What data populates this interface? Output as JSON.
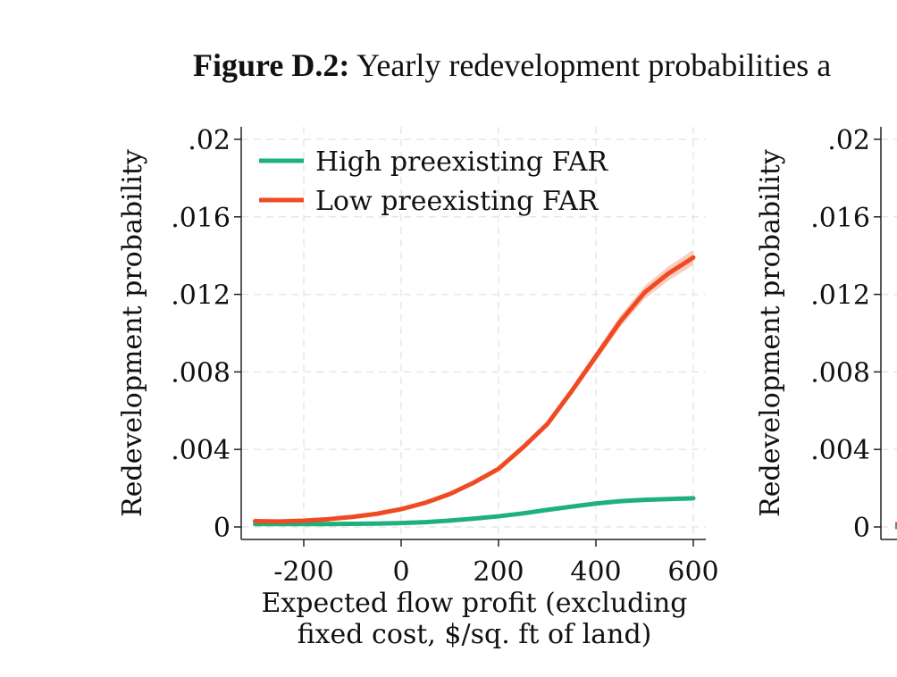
{
  "figure": {
    "caption_label": "Figure D.2:",
    "caption_text": "Yearly redevelopment probabilities a"
  },
  "chart_data": [
    {
      "type": "line",
      "xlabel": [
        "Expected flow profit (excluding",
        "fixed cost, $/sq. ft of land)"
      ],
      "ylabel": "Redevelopment probability",
      "xlim": [
        -300,
        600
      ],
      "ylim": [
        0,
        0.02
      ],
      "xticks": [
        -200,
        0,
        200,
        400,
        600
      ],
      "xtick_labels": [
        "-200",
        "0",
        "200",
        "400",
        "600"
      ],
      "yticks": [
        0,
        0.004,
        0.008,
        0.012,
        0.016,
        0.02
      ],
      "ytick_labels": [
        "0",
        ".004",
        ".008",
        ".012",
        ".016",
        ".02"
      ],
      "grid": true,
      "legend_position": "top-left",
      "x": [
        -300,
        -250,
        -200,
        -150,
        -100,
        -50,
        0,
        50,
        100,
        150,
        200,
        250,
        300,
        350,
        400,
        450,
        500,
        550,
        600
      ],
      "series": [
        {
          "name": "High preexisting FAR",
          "color": "#1db17d",
          "values": [
            0.00015,
            0.00015,
            0.00015,
            0.00015,
            0.00016,
            0.00017,
            0.0002,
            0.00025,
            0.00033,
            0.00043,
            0.00055,
            0.0007,
            0.00088,
            0.00105,
            0.00121,
            0.00133,
            0.0014,
            0.00144,
            0.00148
          ]
        },
        {
          "name": "Low preexisting FAR",
          "color": "#f04a22",
          "values": [
            0.0003,
            0.00028,
            0.00032,
            0.0004,
            0.00052,
            0.00068,
            0.00092,
            0.00125,
            0.0017,
            0.0023,
            0.003,
            0.0041,
            0.0053,
            0.007,
            0.0088,
            0.0106,
            0.0121,
            0.0131,
            0.0139
          ]
        }
      ]
    },
    {
      "type": "line",
      "xlabel": "",
      "ylabel": "Redevelopment probability",
      "ylim": [
        0,
        0.02
      ],
      "yticks": [
        0,
        0.004,
        0.008,
        0.012,
        0.016,
        0.02
      ],
      "ytick_labels": [
        "0",
        ".004",
        ".008",
        ".012",
        ".016",
        ".02"
      ],
      "grid": true,
      "truncated": "right"
    }
  ]
}
